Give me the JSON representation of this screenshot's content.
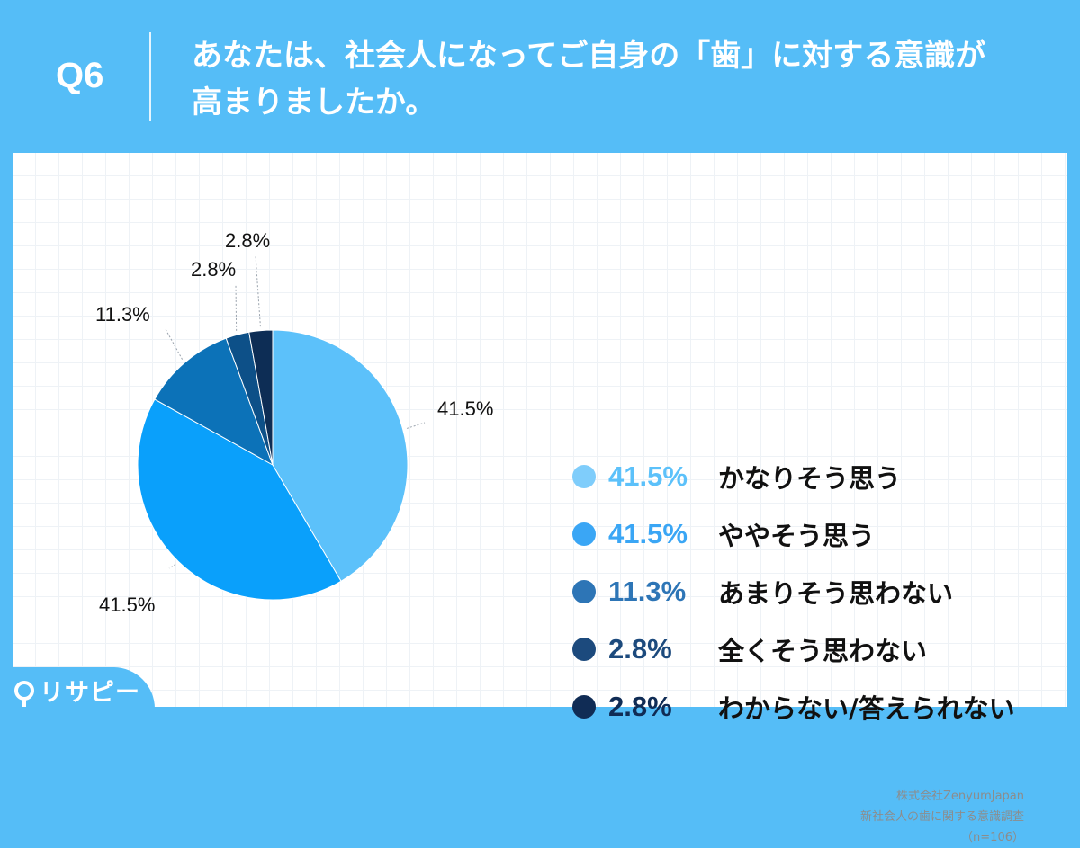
{
  "header": {
    "question_number": "Q6",
    "question_line1": "あなたは、社会人になってご自身の「歯」に対する意識が",
    "question_line2": "高まりましたか。"
  },
  "chart_data": {
    "type": "pie",
    "n": 106,
    "slices": [
      {
        "label": "かなりそう思う",
        "value": 41.5,
        "display": "41.5%",
        "color": "#5cc1fa"
      },
      {
        "label": "ややそう思う",
        "value": 41.5,
        "display": "41.5%",
        "color": "#0aa0fb"
      },
      {
        "label": "あまりそう思わない",
        "value": 11.3,
        "display": "11.3%",
        "color": "#0c72b8"
      },
      {
        "label": "全くそう思わない",
        "value": 2.8,
        "display": "2.8%",
        "color": "#0d5088"
      },
      {
        "label": "わからない/答えられない",
        "value": 2.8,
        "display": "2.8%",
        "color": "#0d2d55"
      }
    ],
    "start_angle_deg": -90,
    "direction": "clockwise"
  },
  "legend": {
    "pct_colors": [
      "#5cc1fa",
      "#3aa6f5",
      "#2d75b6",
      "#1c4a7d",
      "#102c55"
    ],
    "dot_colors": [
      "#7fcdfb",
      "#3aa6f5",
      "#2d75b6",
      "#1c4a7d",
      "#102c55"
    ]
  },
  "source": {
    "company": "株式会社ZenyumJapan",
    "survey": "新社会人の歯に関する意識調査",
    "sample": "（n=106）"
  },
  "logo": {
    "text": "リサピー"
  }
}
